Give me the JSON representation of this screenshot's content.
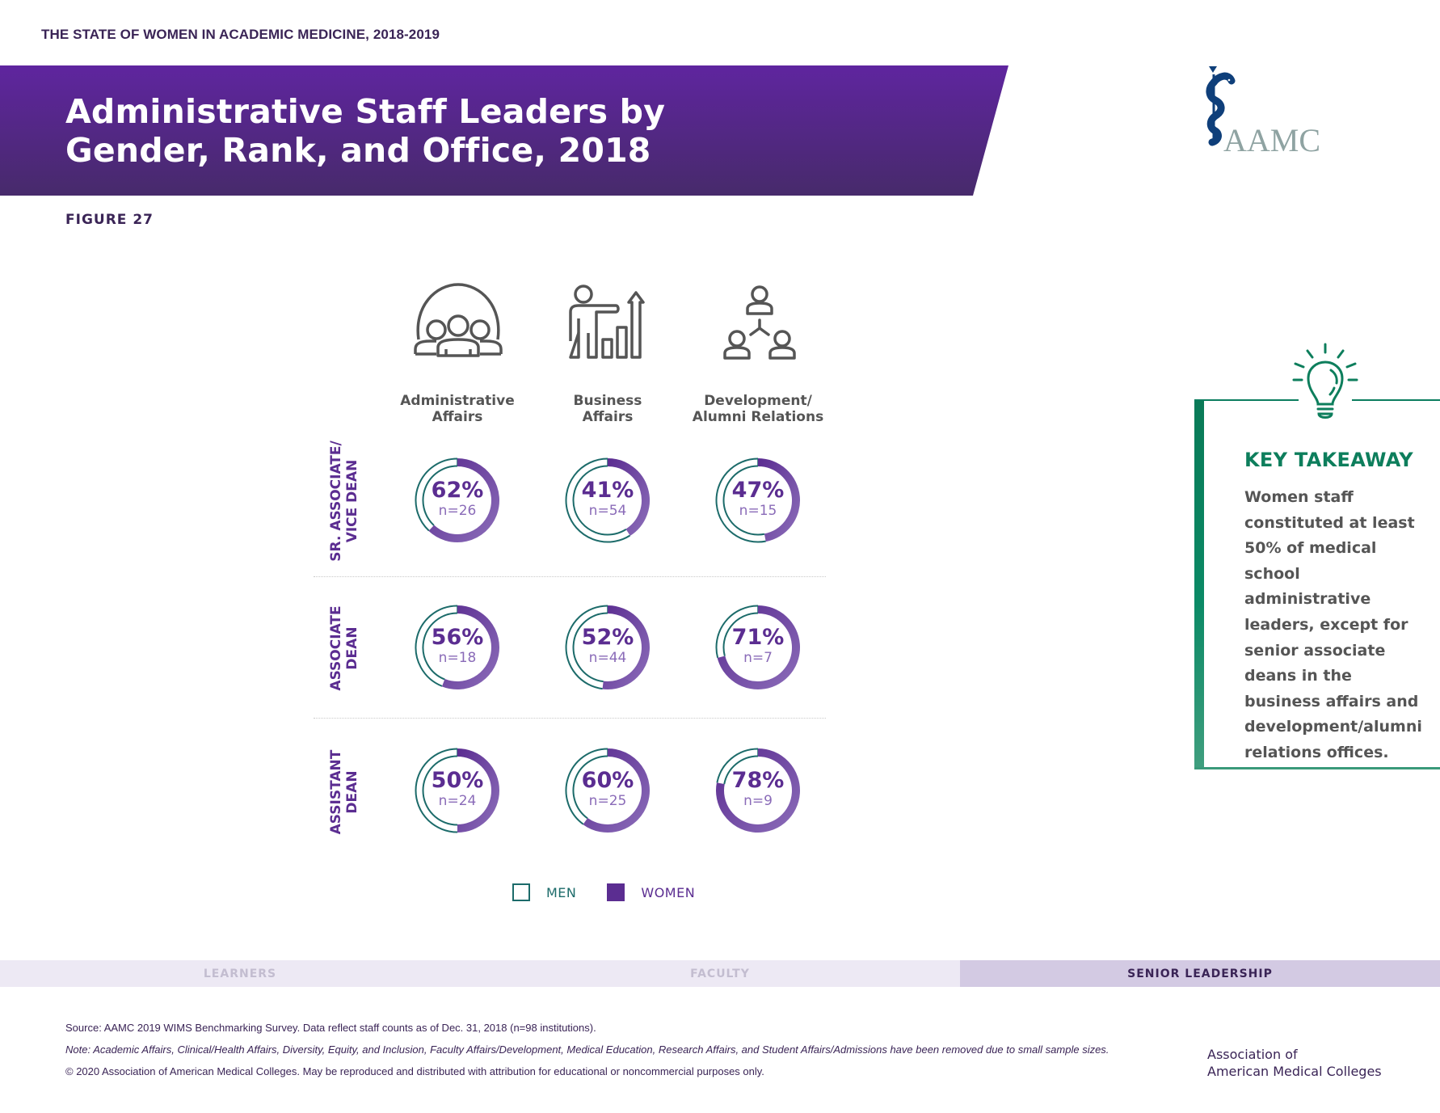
{
  "series_title": "THE STATE OF WOMEN IN ACADEMIC MEDICINE, 2018-2019",
  "banner": {
    "title_line1": "Administrative Staff Leaders by",
    "title_line2": "Gender, Rank, and Office, 2018"
  },
  "figure_label": "FIGURE 27",
  "logo": {
    "text": "AAMC",
    "icon": "aamc-caduceus-icon"
  },
  "colors": {
    "women": "#5b2d91",
    "women_light": "#8a6bb8",
    "men": "#1c6b6a",
    "banner_top": "#5f259f",
    "banner_bottom": "#472a6b",
    "takeaway_green": "#0d7e5c"
  },
  "chart_data": {
    "type": "donut-grid",
    "title": "Administrative Staff Leaders by Gender, Rank, and Office, 2018",
    "columns": [
      {
        "line1": "Administrative",
        "line2": "Affairs",
        "icon": "people-group-icon"
      },
      {
        "line1": "Business",
        "line2": "Affairs",
        "icon": "presenter-chart-icon"
      },
      {
        "line1": "Development/",
        "line2": "Alumni Relations",
        "icon": "network-people-icon"
      }
    ],
    "rows": [
      {
        "line1": "SR. ASSOCIATE/",
        "line2": "VICE DEAN"
      },
      {
        "line1": "ASSOCIATE",
        "line2": "DEAN"
      },
      {
        "line1": "ASSISTANT",
        "line2": "DEAN"
      }
    ],
    "series": [
      {
        "name": "MEN",
        "values_note": "remainder (100 - women %)"
      },
      {
        "name": "WOMEN"
      }
    ],
    "cells": [
      [
        {
          "women_pct": 62,
          "n": 26,
          "label": "62%",
          "n_label": "n=26"
        },
        {
          "women_pct": 41,
          "n": 54,
          "label": "41%",
          "n_label": "n=54"
        },
        {
          "women_pct": 47,
          "n": 15,
          "label": "47%",
          "n_label": "n=15"
        }
      ],
      [
        {
          "women_pct": 56,
          "n": 18,
          "label": "56%",
          "n_label": "n=18"
        },
        {
          "women_pct": 52,
          "n": 44,
          "label": "52%",
          "n_label": "n=44"
        },
        {
          "women_pct": 71,
          "n": 7,
          "label": "71%",
          "n_label": "n=7"
        }
      ],
      [
        {
          "women_pct": 50,
          "n": 24,
          "label": "50%",
          "n_label": "n=24"
        },
        {
          "women_pct": 60,
          "n": 25,
          "label": "60%",
          "n_label": "n=25"
        },
        {
          "women_pct": 78,
          "n": 9,
          "label": "78%",
          "n_label": "n=9"
        }
      ]
    ],
    "legend": {
      "men": "MEN",
      "women": "WOMEN",
      "placement": "bottom"
    }
  },
  "key_takeaway": {
    "title": "KEY TAKEAWAY",
    "icon": "lightbulb-icon",
    "lines": [
      "Women staff",
      "constituted at least",
      "50% of medical",
      "school administrative",
      "leaders, except for",
      "senior associate",
      "deans in the",
      "business affairs and",
      "development/alumni",
      "relations offices."
    ]
  },
  "nav_tabs": [
    {
      "label": "LEARNERS",
      "active": false
    },
    {
      "label": "FACULTY",
      "active": false
    },
    {
      "label": "SENIOR LEADERSHIP",
      "active": true
    }
  ],
  "footer": {
    "source": "Source: AAMC 2019 WIMS Benchmarking Survey. Data reflect staff counts as of Dec. 31, 2018 (n=98 institutions).",
    "note": "Note: Academic Affairs, Clinical/Health Affairs, Diversity, Equity, and Inclusion, Faculty Affairs/Development, Medical Education, Research Affairs, and Student Affairs/Admissions have been removed due to small sample sizes.",
    "copyright": "© 2020 Association of American Medical Colleges. May be reproduced and distributed with attribution for educational or noncommercial purposes only.",
    "org_line1": "Association of",
    "org_line2": "American Medical Colleges"
  }
}
